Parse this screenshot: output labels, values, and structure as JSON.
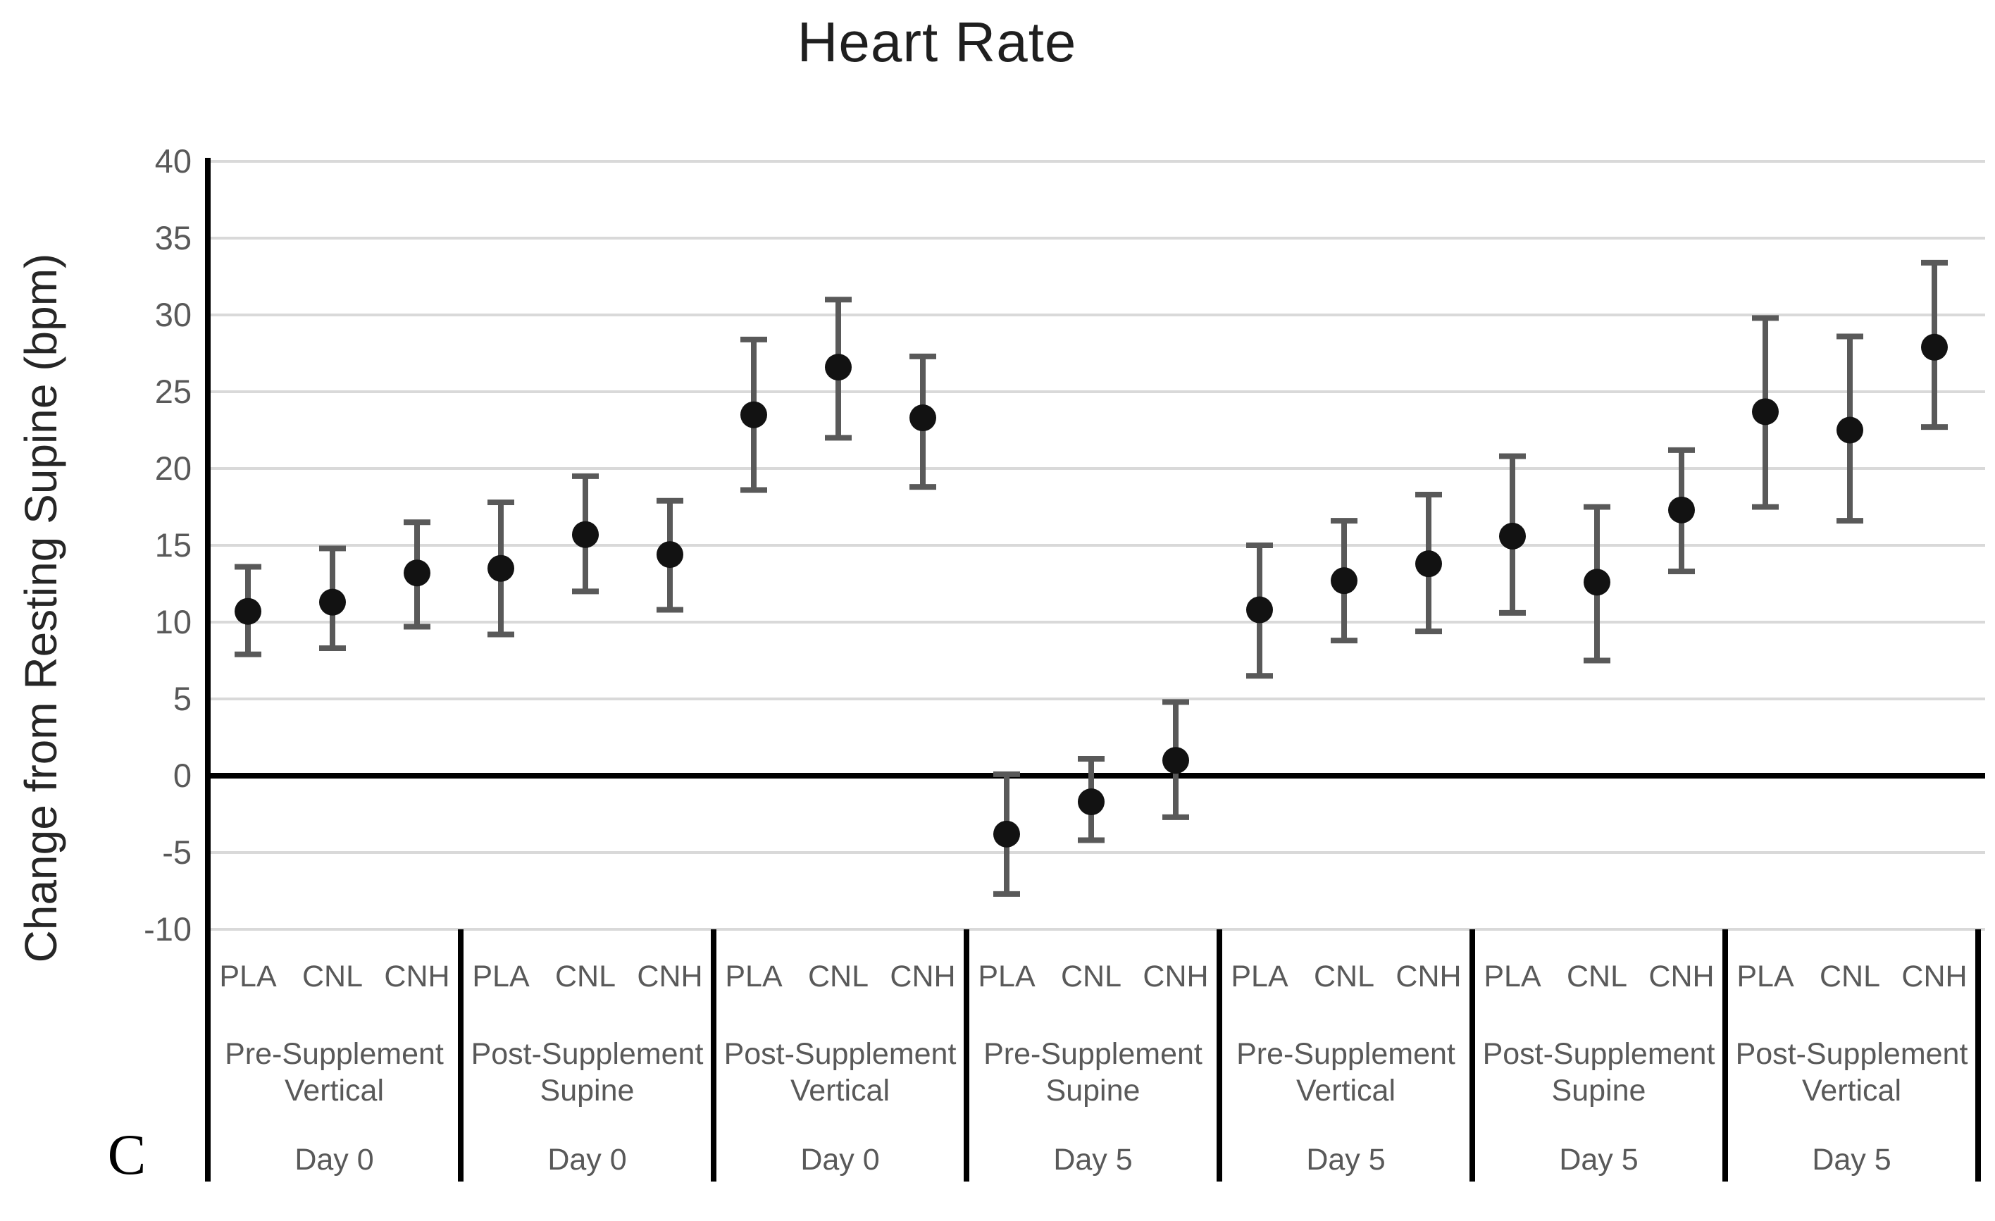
{
  "page": {
    "background": "#ffffff"
  },
  "panel_letter": "C",
  "chart_data": {
    "type": "scatter",
    "title": "Heart Rate",
    "ylabel": "Change from Resting Supine (bpm)",
    "xlabel": "",
    "ylim": [
      -10,
      40
    ],
    "yticks": [
      40,
      35,
      30,
      25,
      20,
      15,
      10,
      5,
      0,
      -5,
      -10
    ],
    "grid": true,
    "legend_position": "none",
    "marker": "filled-circle",
    "error_bars": "±95% CI (caps)",
    "treatments": [
      "PLA",
      "CNL",
      "CNH"
    ],
    "groups": [
      {
        "condition_line1": "Pre-Supplement",
        "condition_line2": "Vertical",
        "day": "Day 0",
        "points": [
          {
            "treatment": "PLA",
            "mean": 10.7,
            "lo": 7.9,
            "hi": 13.6
          },
          {
            "treatment": "CNL",
            "mean": 11.3,
            "lo": 8.3,
            "hi": 14.8
          },
          {
            "treatment": "CNH",
            "mean": 13.2,
            "lo": 9.7,
            "hi": 16.5
          }
        ]
      },
      {
        "condition_line1": "Post-Supplement",
        "condition_line2": "Supine",
        "day": "Day 0",
        "points": [
          {
            "treatment": "PLA",
            "mean": 13.5,
            "lo": 9.2,
            "hi": 17.8
          },
          {
            "treatment": "CNL",
            "mean": 15.7,
            "lo": 12.0,
            "hi": 19.5
          },
          {
            "treatment": "CNH",
            "mean": 14.4,
            "lo": 10.8,
            "hi": 17.9
          }
        ]
      },
      {
        "condition_line1": "Post-Supplement",
        "condition_line2": "Vertical",
        "day": "Day 0",
        "points": [
          {
            "treatment": "PLA",
            "mean": 23.5,
            "lo": 18.6,
            "hi": 28.4
          },
          {
            "treatment": "CNL",
            "mean": 26.6,
            "lo": 22.0,
            "hi": 31.0
          },
          {
            "treatment": "CNH",
            "mean": 23.3,
            "lo": 18.8,
            "hi": 27.3
          }
        ]
      },
      {
        "condition_line1": "Pre-Supplement",
        "condition_line2": "Supine",
        "day": "Day 5",
        "points": [
          {
            "treatment": "PLA",
            "mean": -3.8,
            "lo": -7.7,
            "hi": 0.1
          },
          {
            "treatment": "CNL",
            "mean": -1.7,
            "lo": -4.2,
            "hi": 1.1
          },
          {
            "treatment": "CNH",
            "mean": 1.0,
            "lo": -2.7,
            "hi": 4.8
          }
        ]
      },
      {
        "condition_line1": "Pre-Supplement",
        "condition_line2": "Vertical",
        "day": "Day 5",
        "points": [
          {
            "treatment": "PLA",
            "mean": 10.8,
            "lo": 6.5,
            "hi": 15.0
          },
          {
            "treatment": "CNL",
            "mean": 12.7,
            "lo": 8.8,
            "hi": 16.6
          },
          {
            "treatment": "CNH",
            "mean": 13.8,
            "lo": 9.4,
            "hi": 18.3
          }
        ]
      },
      {
        "condition_line1": "Post-Supplement",
        "condition_line2": "Supine",
        "day": "Day 5",
        "points": [
          {
            "treatment": "PLA",
            "mean": 15.6,
            "lo": 10.6,
            "hi": 20.8
          },
          {
            "treatment": "CNL",
            "mean": 12.6,
            "lo": 7.5,
            "hi": 17.5
          },
          {
            "treatment": "CNH",
            "mean": 17.3,
            "lo": 13.3,
            "hi": 21.2
          }
        ]
      },
      {
        "condition_line1": "Post-Supplement",
        "condition_line2": "Vertical",
        "day": "Day 5",
        "points": [
          {
            "treatment": "PLA",
            "mean": 23.7,
            "lo": 17.5,
            "hi": 29.8
          },
          {
            "treatment": "CNL",
            "mean": 22.5,
            "lo": 16.6,
            "hi": 28.6
          },
          {
            "treatment": "CNH",
            "mean": 27.9,
            "lo": 22.7,
            "hi": 33.4
          }
        ]
      }
    ],
    "colors": {
      "marker": "#121212",
      "error_bar": "#595959",
      "gridline": "#d9d9d9",
      "zero_line": "#000000",
      "axis_line": "#000000",
      "separator_line": "#000000",
      "tick_label": "#595959",
      "category_label": "#595959",
      "title": "#1f1f1f",
      "y_axis_title": "#262626"
    }
  }
}
